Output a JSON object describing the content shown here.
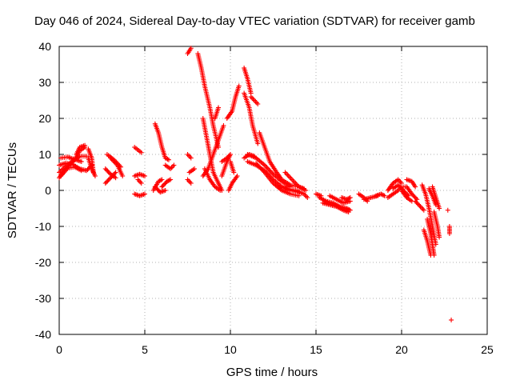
{
  "chart_data": {
    "type": "scatter",
    "title": "Day 046 of 2024, Sidereal Day-to-day VTEC variation (SDTVAR) for receiver gamb",
    "xlabel": "GPS time / hours",
    "ylabel": "SDTVAR / TECUs",
    "xlim": [
      0,
      25
    ],
    "ylim": [
      -40,
      40
    ],
    "xticks": [
      "0",
      "5",
      "10",
      "15",
      "20",
      "25"
    ],
    "yticks": [
      "-40",
      "-30",
      "-20",
      "-10",
      "0",
      "10",
      "20",
      "30",
      "40"
    ],
    "grid": true,
    "marker": "+",
    "color": "#ff0000",
    "series": [
      {
        "name": "SDTVAR",
        "tracks": [
          [
            [
              0.0,
              3.5
            ],
            [
              0.3,
              5.5
            ],
            [
              0.6,
              7.0
            ],
            [
              0.9,
              8.5
            ],
            [
              1.2,
              11.0
            ],
            [
              1.5,
              12.0
            ]
          ],
          [
            [
              0.0,
              5.0
            ],
            [
              0.4,
              6.8
            ],
            [
              0.8,
              8.2
            ],
            [
              1.2,
              9.5
            ],
            [
              1.6,
              9.5
            ]
          ],
          [
            [
              0.0,
              7.0
            ],
            [
              0.4,
              7.6
            ],
            [
              0.8,
              7.2
            ],
            [
              1.2,
              6.0
            ],
            [
              1.6,
              5.5
            ],
            [
              1.9,
              7.0
            ]
          ],
          [
            [
              0.1,
              9.0
            ],
            [
              0.5,
              9.3
            ],
            [
              0.9,
              8.6
            ],
            [
              1.3,
              8.0
            ]
          ],
          [
            [
              0.1,
              4.0
            ],
            [
              0.5,
              6.2
            ],
            [
              0.9,
              6.5
            ],
            [
              1.3,
              5.5
            ]
          ],
          [
            [
              1.0,
              10.0
            ],
            [
              1.2,
              12.0
            ],
            [
              1.5,
              12.5
            ]
          ],
          [
            [
              1.7,
              11.5
            ],
            [
              1.9,
              9.0
            ],
            [
              2.0,
              5.0
            ]
          ],
          [
            [
              1.7,
              9.0
            ],
            [
              1.9,
              6.0
            ],
            [
              2.1,
              4.0
            ]
          ],
          [
            [
              2.7,
              6.0
            ],
            [
              3.0,
              4.5
            ],
            [
              3.3,
              3.5
            ]
          ],
          [
            [
              2.7,
              2.0
            ],
            [
              3.0,
              3.5
            ],
            [
              3.3,
              5.0
            ]
          ],
          [
            [
              2.8,
              10.0
            ],
            [
              3.2,
              8.5
            ],
            [
              3.6,
              6.5
            ]
          ],
          [
            [
              3.0,
              9.0
            ],
            [
              3.4,
              7.0
            ],
            [
              3.7,
              4.0
            ]
          ],
          [
            [
              4.4,
              12.0
            ],
            [
              4.8,
              10.5
            ]
          ],
          [
            [
              4.4,
              4.0
            ],
            [
              4.7,
              4.5
            ],
            [
              5.0,
              4.0
            ]
          ],
          [
            [
              4.4,
              -1.0
            ],
            [
              4.7,
              -1.5
            ],
            [
              5.0,
              -1.0
            ]
          ],
          [
            [
              4.6,
              3.0
            ],
            [
              4.8,
              2.0
            ]
          ],
          [
            [
              5.6,
              18.5
            ],
            [
              5.8,
              16.0
            ],
            [
              6.0,
              12.0
            ],
            [
              6.2,
              9.0
            ],
            [
              6.4,
              8.5
            ]
          ],
          [
            [
              5.6,
              1.0
            ],
            [
              5.9,
              -0.5
            ],
            [
              6.2,
              0.0
            ]
          ],
          [
            [
              5.5,
              0.0
            ],
            [
              5.8,
              2.5
            ],
            [
              6.0,
              3.0
            ]
          ],
          [
            [
              6.0,
              1.0
            ],
            [
              6.3,
              2.5
            ],
            [
              6.5,
              3.0
            ]
          ],
          [
            [
              6.2,
              7.0
            ],
            [
              6.5,
              6.0
            ],
            [
              6.7,
              7.0
            ]
          ],
          [
            [
              7.5,
              3.0
            ],
            [
              7.7,
              2.0
            ]
          ],
          [
            [
              7.5,
              10.0
            ],
            [
              7.7,
              9.0
            ]
          ],
          [
            [
              7.6,
              5.0
            ],
            [
              7.9,
              6.0
            ]
          ],
          [
            [
              7.5,
              38.0
            ],
            [
              7.7,
              39.5
            ]
          ],
          [
            [
              8.1,
              38.0
            ],
            [
              8.3,
              34.0
            ],
            [
              8.5,
              29.0
            ],
            [
              8.8,
              23.0
            ],
            [
              9.0,
              18.0
            ],
            [
              9.3,
              12.0
            ]
          ],
          [
            [
              8.4,
              20.0
            ],
            [
              8.6,
              15.0
            ],
            [
              8.8,
              10.0
            ],
            [
              9.0,
              5.0
            ]
          ],
          [
            [
              8.5,
              6.0
            ],
            [
              8.8,
              3.0
            ],
            [
              9.1,
              1.0
            ],
            [
              9.4,
              0.0
            ]
          ],
          [
            [
              8.4,
              4.0
            ],
            [
              8.7,
              6.0
            ],
            [
              9.0,
              10.0
            ],
            [
              9.3,
              14.0
            ],
            [
              9.6,
              18.0
            ]
          ],
          [
            [
              9.1,
              20.0
            ],
            [
              9.3,
              23.0
            ]
          ],
          [
            [
              9.0,
              5.0
            ],
            [
              9.3,
              2.0
            ],
            [
              9.5,
              0.0
            ]
          ],
          [
            [
              9.5,
              4.0
            ],
            [
              9.8,
              8.0
            ],
            [
              10.0,
              10.0
            ]
          ],
          [
            [
              9.5,
              8.0
            ],
            [
              9.8,
              9.0
            ],
            [
              10.0,
              10.0
            ]
          ],
          [
            [
              9.8,
              20.0
            ],
            [
              10.1,
              22.0
            ],
            [
              10.3,
              26.0
            ],
            [
              10.5,
              29.0
            ]
          ],
          [
            [
              9.9,
              0.0
            ],
            [
              10.1,
              2.0
            ],
            [
              10.4,
              4.0
            ]
          ],
          [
            [
              10.0,
              8.0
            ],
            [
              10.2,
              5.0
            ]
          ],
          [
            [
              10.8,
              34.0
            ],
            [
              11.0,
              31.0
            ],
            [
              11.2,
              27.0
            ]
          ],
          [
            [
              11.2,
              26.0
            ],
            [
              11.6,
              24.0
            ]
          ],
          [
            [
              10.8,
              27.0
            ],
            [
              11.1,
              23.0
            ],
            [
              11.3,
              18.0
            ],
            [
              11.6,
              13.0
            ]
          ],
          [
            [
              11.7,
              16.0
            ],
            [
              12.0,
              12.0
            ],
            [
              12.3,
              8.0
            ],
            [
              12.7,
              5.0
            ],
            [
              13.0,
              3.0
            ],
            [
              13.5,
              1.5
            ],
            [
              14.0,
              1.0
            ],
            [
              14.3,
              0.5
            ]
          ],
          [
            [
              10.8,
              9.0
            ],
            [
              11.1,
              10.0
            ],
            [
              11.4,
              9.5
            ]
          ],
          [
            [
              11.0,
              8.0
            ],
            [
              11.5,
              7.0
            ],
            [
              12.0,
              5.5
            ],
            [
              12.5,
              3.0
            ],
            [
              13.0,
              1.0
            ],
            [
              13.5,
              0.0
            ],
            [
              14.0,
              -0.5
            ]
          ],
          [
            [
              11.0,
              10.0
            ],
            [
              11.5,
              9.0
            ],
            [
              12.0,
              7.0
            ],
            [
              12.5,
              4.5
            ],
            [
              13.0,
              2.5
            ],
            [
              13.5,
              1.0
            ]
          ],
          [
            [
              11.5,
              7.5
            ],
            [
              12.0,
              5.0
            ],
            [
              12.5,
              2.0
            ],
            [
              13.0,
              0.0
            ],
            [
              13.5,
              -1.0
            ],
            [
              14.0,
              -1.5
            ]
          ],
          [
            [
              13.2,
              5.0
            ],
            [
              13.6,
              3.0
            ],
            [
              14.0,
              1.0
            ],
            [
              14.4,
              0.0
            ]
          ],
          [
            [
              12.8,
              1.0
            ],
            [
              13.3,
              0.5
            ],
            [
              13.8,
              0.0
            ],
            [
              14.3,
              -1.0
            ],
            [
              14.5,
              -2.0
            ]
          ],
          [
            [
              15.0,
              -1.0
            ],
            [
              15.3,
              -1.5
            ]
          ],
          [
            [
              15.2,
              -2.0
            ],
            [
              15.6,
              -3.0
            ],
            [
              16.0,
              -3.5
            ],
            [
              16.4,
              -4.5
            ],
            [
              16.8,
              -5.0
            ],
            [
              17.0,
              -5.5
            ]
          ],
          [
            [
              15.4,
              -3.5
            ],
            [
              15.8,
              -4.0
            ],
            [
              16.2,
              -4.5
            ],
            [
              16.6,
              -5.5
            ],
            [
              16.9,
              -6.0
            ]
          ],
          [
            [
              15.8,
              -1.5
            ],
            [
              16.2,
              -2.5
            ],
            [
              16.6,
              -3.5
            ],
            [
              17.0,
              -3.0
            ]
          ],
          [
            [
              16.5,
              -2.0
            ],
            [
              16.8,
              -2.5
            ],
            [
              17.0,
              -2.0
            ]
          ],
          [
            [
              17.5,
              -1.0
            ],
            [
              17.8,
              -2.0
            ],
            [
              18.0,
              -3.0
            ]
          ],
          [
            [
              17.8,
              -2.5
            ],
            [
              18.2,
              -2.0
            ],
            [
              18.6,
              -1.5
            ]
          ],
          [
            [
              18.5,
              -1.5
            ],
            [
              18.8,
              -1.0
            ],
            [
              19.0,
              -1.5
            ]
          ],
          [
            [
              19.2,
              -2.0
            ],
            [
              19.5,
              -1.0
            ],
            [
              19.8,
              0.0
            ],
            [
              20.0,
              1.0
            ],
            [
              20.3,
              1.0
            ]
          ],
          [
            [
              19.2,
              0.0
            ],
            [
              19.5,
              2.0
            ],
            [
              19.8,
              3.0
            ],
            [
              20.0,
              2.0
            ]
          ],
          [
            [
              19.5,
              0.5
            ],
            [
              19.8,
              1.5
            ],
            [
              20.1,
              0.0
            ],
            [
              20.4,
              -1.5
            ]
          ],
          [
            [
              20.0,
              0.0
            ],
            [
              20.3,
              -2.0
            ],
            [
              20.6,
              -3.0
            ]
          ],
          [
            [
              20.3,
              3.0
            ],
            [
              20.6,
              2.5
            ],
            [
              20.8,
              1.0
            ]
          ],
          [
            [
              20.3,
              1.0
            ],
            [
              20.6,
              -1.0
            ],
            [
              20.9,
              -2.5
            ]
          ],
          [
            [
              20.8,
              -3.0
            ],
            [
              21.1,
              -4.5
            ],
            [
              21.3,
              -5.5
            ]
          ],
          [
            [
              21.2,
              1.5
            ],
            [
              21.4,
              -1.0
            ],
            [
              21.6,
              -5.0
            ],
            [
              21.8,
              -10.0
            ],
            [
              22.0,
              -15.0
            ]
          ],
          [
            [
              21.5,
              -8.0
            ],
            [
              21.7,
              -12.0
            ],
            [
              21.8,
              -15.0
            ],
            [
              21.9,
              -18.0
            ]
          ],
          [
            [
              21.3,
              -11.0
            ],
            [
              21.5,
              -14.0
            ],
            [
              21.7,
              -18.0
            ]
          ],
          [
            [
              21.6,
              0.5
            ],
            [
              21.8,
              -1.5
            ],
            [
              22.0,
              -4.0
            ]
          ],
          [
            [
              21.8,
              1.0
            ],
            [
              22.0,
              -2.0
            ],
            [
              22.2,
              -5.0
            ]
          ],
          [
            [
              21.9,
              -6.0
            ],
            [
              22.1,
              -10.0
            ],
            [
              22.2,
              -13.0
            ]
          ],
          [
            [
              22.7,
              -5.5
            ]
          ],
          [
            [
              22.8,
              -10.0
            ],
            [
              22.8,
              -12.0
            ]
          ],
          [
            [
              22.9,
              -36.0
            ]
          ]
        ]
      }
    ]
  }
}
